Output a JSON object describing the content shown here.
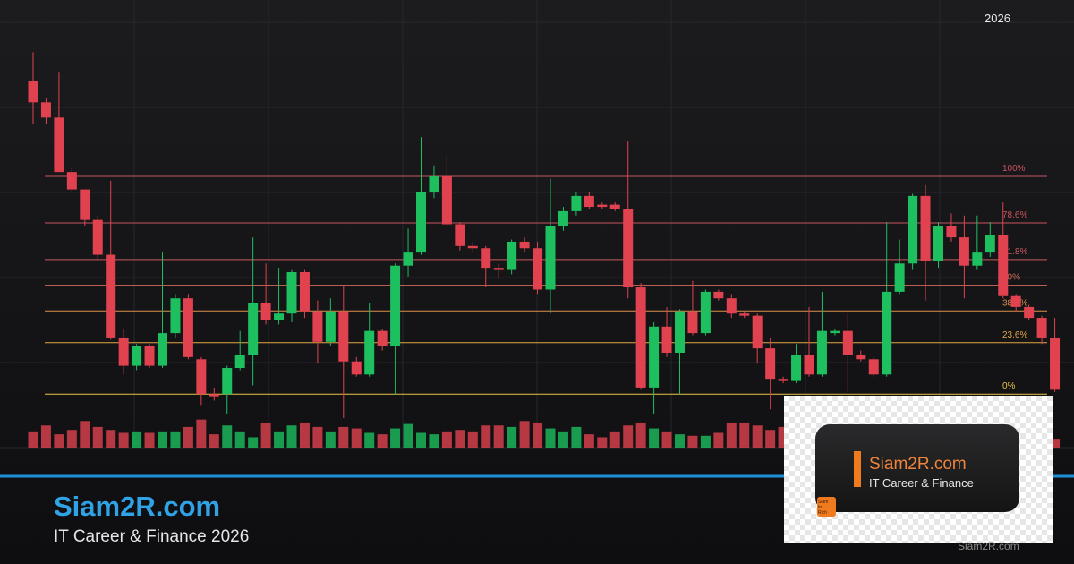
{
  "chart_data": {
    "type": "candlestick",
    "year_label": "2026",
    "ylim": [
      -25,
      181
    ],
    "volume_ylim": [
      0,
      100
    ],
    "up_color": "#1dbf5f",
    "down_color": "#e0424f",
    "open": [
      144,
      134,
      127,
      102,
      94,
      80,
      64,
      26,
      13,
      22,
      13,
      28,
      44,
      16,
      0,
      0,
      12,
      18,
      42,
      34,
      37,
      56,
      38,
      24,
      38,
      15,
      9,
      29,
      22,
      59,
      65,
      93,
      100,
      78,
      68,
      67,
      58,
      57,
      70,
      67,
      48,
      77,
      84,
      91,
      87,
      87,
      85,
      49,
      3,
      31,
      19,
      38,
      28,
      47,
      44,
      37,
      36,
      21,
      7,
      6,
      18,
      9,
      28,
      29,
      18,
      16,
      9,
      47,
      60,
      91,
      61,
      77,
      72,
      59,
      65,
      73,
      45,
      40,
      35,
      26
    ],
    "high": [
      157,
      136,
      148,
      104,
      94,
      82,
      98,
      30,
      23,
      23,
      65,
      46,
      46,
      17,
      3,
      13,
      29,
      72,
      60,
      58,
      57,
      57,
      43,
      44,
      50,
      17,
      42,
      30,
      60,
      76,
      118,
      105,
      110,
      79,
      70,
      68,
      60,
      71,
      72,
      70,
      99,
      86,
      93,
      93,
      88,
      88,
      116,
      51,
      33,
      40,
      39,
      52,
      48,
      48,
      46,
      38,
      37,
      26,
      8,
      23,
      40,
      47,
      30,
      37,
      20,
      17,
      79,
      71,
      92,
      96,
      79,
      83,
      82,
      82,
      79,
      88,
      46,
      41,
      36,
      35
    ],
    "low": [
      124,
      124,
      102,
      93,
      77,
      62,
      25,
      9,
      11,
      12,
      12,
      26,
      16,
      -5,
      -3,
      -9,
      11,
      4,
      32,
      32,
      33,
      35,
      14,
      22,
      -11,
      8,
      8,
      20,
      0,
      54,
      64,
      90,
      77,
      66,
      65,
      49,
      53,
      55,
      65,
      46,
      37,
      75,
      82,
      85,
      85,
      84,
      44,
      2,
      -9,
      17,
      0,
      27,
      27,
      43,
      35,
      35,
      14,
      -7,
      5,
      5,
      8,
      8,
      27,
      1,
      15,
      8,
      8,
      46,
      57,
      43,
      58,
      70,
      44,
      57,
      63,
      44,
      38,
      34,
      23,
      1
    ],
    "close": [
      134,
      127,
      102,
      94,
      80,
      64,
      26,
      13,
      22,
      13,
      28,
      44,
      17,
      0,
      -1,
      12,
      18,
      42,
      34,
      37,
      56,
      38,
      24,
      38,
      15,
      9,
      29,
      22,
      59,
      65,
      93,
      100,
      78,
      68,
      67,
      58,
      57,
      70,
      67,
      48,
      77,
      84,
      91,
      86,
      86,
      85,
      49,
      3,
      31,
      19,
      38,
      28,
      47,
      44,
      37,
      36,
      21,
      7,
      6,
      18,
      9,
      29,
      29,
      18,
      16,
      9,
      47,
      60,
      91,
      61,
      77,
      72,
      59,
      65,
      73,
      45,
      40,
      35,
      26,
      2
    ],
    "volume": [
      55,
      75,
      45,
      60,
      90,
      70,
      60,
      50,
      55,
      50,
      55,
      55,
      70,
      95,
      45,
      75,
      55,
      35,
      85,
      55,
      75,
      85,
      70,
      55,
      70,
      65,
      50,
      45,
      65,
      80,
      50,
      45,
      55,
      60,
      55,
      75,
      75,
      70,
      90,
      85,
      65,
      55,
      70,
      45,
      35,
      55,
      75,
      85,
      65,
      55,
      45,
      40,
      40,
      50,
      85,
      85,
      75,
      60,
      70,
      55,
      90,
      50,
      95,
      75,
      85,
      75,
      45,
      60,
      55,
      85,
      70,
      60,
      50,
      40,
      45,
      60,
      55,
      45,
      35,
      30
    ],
    "fib_levels": [
      {
        "value": 100,
        "label": "100%",
        "color": "#c9525f"
      },
      {
        "value": 78.6,
        "label": "78.6%",
        "color": "#c9525f"
      },
      {
        "value": 61.8,
        "label": "61.8%",
        "color": "#c95a5e"
      },
      {
        "value": 50,
        "label": "50%",
        "color": "#d46a5a"
      },
      {
        "value": 38.2,
        "label": "38.2%",
        "color": "#e0904a"
      },
      {
        "value": 23.6,
        "label": "23.6%",
        "color": "#e3a645"
      },
      {
        "value": 0,
        "label": "0%",
        "color": "#e8c547"
      }
    ]
  },
  "footer": {
    "title": "Siam2R.com",
    "subtitle": "IT Career & Finance 2026"
  },
  "logo": {
    "title": "Siam2R.com",
    "subtitle": "IT Career & Finance",
    "badge": "Siam to Rich"
  },
  "watermark": "Siam2R.com"
}
